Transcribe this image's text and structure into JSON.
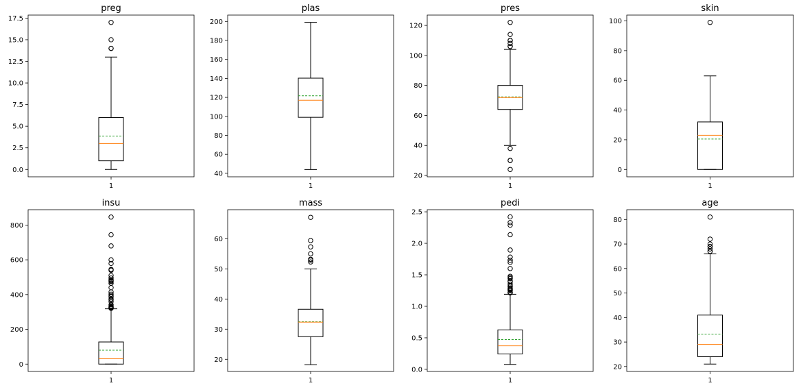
{
  "chart_data": [
    {
      "type": "box",
      "title": "preg",
      "category": "1",
      "ylim": [
        -0.85,
        17.85
      ],
      "yticks": [
        0.0,
        2.5,
        5.0,
        7.5,
        10.0,
        12.5,
        15.0,
        17.5
      ],
      "tick_format": "1f",
      "stats": {
        "whislo": 0,
        "q1": 1,
        "median": 3,
        "q3": 6,
        "whishi": 13,
        "mean": 3.85
      },
      "fliers": [
        14,
        14,
        15,
        17
      ]
    },
    {
      "type": "box",
      "title": "plas",
      "category": "1",
      "ylim": [
        36.3,
        206.7
      ],
      "yticks": [
        40,
        60,
        80,
        100,
        120,
        140,
        160,
        180,
        200
      ],
      "tick_format": "0f",
      "stats": {
        "whislo": 44,
        "q1": 99,
        "median": 117,
        "q3": 140.25,
        "whishi": 199,
        "mean": 121.7
      },
      "fliers": []
    },
    {
      "type": "box",
      "title": "pres",
      "category": "1",
      "ylim": [
        19.1,
        126.9
      ],
      "yticks": [
        20,
        40,
        60,
        80,
        100,
        120
      ],
      "tick_format": "0f",
      "stats": {
        "whislo": 40,
        "q1": 64,
        "median": 72,
        "q3": 80,
        "whishi": 104,
        "mean": 72.4
      },
      "fliers": [
        24,
        30,
        30,
        38,
        106,
        106,
        108,
        110,
        110,
        114,
        122
      ]
    },
    {
      "type": "box",
      "title": "skin",
      "category": "1",
      "ylim": [
        -4.95,
        103.95
      ],
      "yticks": [
        0,
        20,
        40,
        60,
        80,
        100
      ],
      "tick_format": "0f",
      "stats": {
        "whislo": 0,
        "q1": 0,
        "median": 23,
        "q3": 32,
        "whishi": 63,
        "mean": 20.5
      },
      "fliers": [
        99
      ]
    },
    {
      "type": "box",
      "title": "insu",
      "category": "1",
      "ylim": [
        -42.3,
        888.3
      ],
      "yticks": [
        0,
        200,
        400,
        600,
        800
      ],
      "tick_format": "0f",
      "stats": {
        "whislo": 0,
        "q1": 0,
        "median": 30.5,
        "q3": 127.25,
        "whishi": 318,
        "mean": 79.8
      },
      "fliers": [
        321,
        325,
        326,
        328,
        330,
        335,
        342,
        360,
        370,
        375,
        387,
        392,
        402,
        415,
        440,
        465,
        474,
        478,
        480,
        485,
        495,
        510,
        540,
        543,
        545,
        579,
        600,
        680,
        744,
        846
      ]
    },
    {
      "type": "box",
      "title": "mass",
      "category": "1",
      "ylim": [
        15.965,
        69.635
      ],
      "yticks": [
        20,
        30,
        40,
        50,
        60
      ],
      "tick_format": "0f",
      "stats": {
        "whislo": 18.2,
        "q1": 27.5,
        "median": 32.3,
        "q3": 36.6,
        "whishi": 50.0,
        "mean": 32.45
      },
      "fliers": [
        52.3,
        52.9,
        53.2,
        55.0,
        57.3,
        59.4,
        67.1
      ]
    },
    {
      "type": "box",
      "title": "pedi",
      "category": "1",
      "ylim": [
        -0.0335,
        2.5335
      ],
      "yticks": [
        0.0,
        0.5,
        1.0,
        1.5,
        2.0,
        2.5
      ],
      "tick_format": "1f",
      "stats": {
        "whislo": 0.078,
        "q1": 0.244,
        "median": 0.3725,
        "q3": 0.626,
        "whishi": 1.191,
        "mean": 0.472
      },
      "fliers": [
        1.213,
        1.222,
        1.224,
        1.251,
        1.258,
        1.268,
        1.282,
        1.292,
        1.318,
        1.321,
        1.353,
        1.39,
        1.4,
        1.441,
        1.461,
        1.476,
        1.6,
        1.698,
        1.731,
        1.781,
        1.893,
        2.137,
        2.288,
        2.329,
        2.42
      ]
    },
    {
      "type": "box",
      "title": "age",
      "category": "1",
      "ylim": [
        18.0,
        84.0
      ],
      "yticks": [
        20,
        30,
        40,
        50,
        60,
        70,
        80
      ],
      "tick_format": "0f",
      "stats": {
        "whislo": 21,
        "q1": 24,
        "median": 29,
        "q3": 41,
        "whishi": 66,
        "mean": 33.24
      },
      "fliers": [
        67,
        67,
        68,
        69,
        69,
        70,
        72,
        81
      ]
    }
  ],
  "colors": {
    "box": "#000000",
    "median": "#ff7f0e",
    "mean": "#2ca02c",
    "flier_edge": "#000000"
  }
}
